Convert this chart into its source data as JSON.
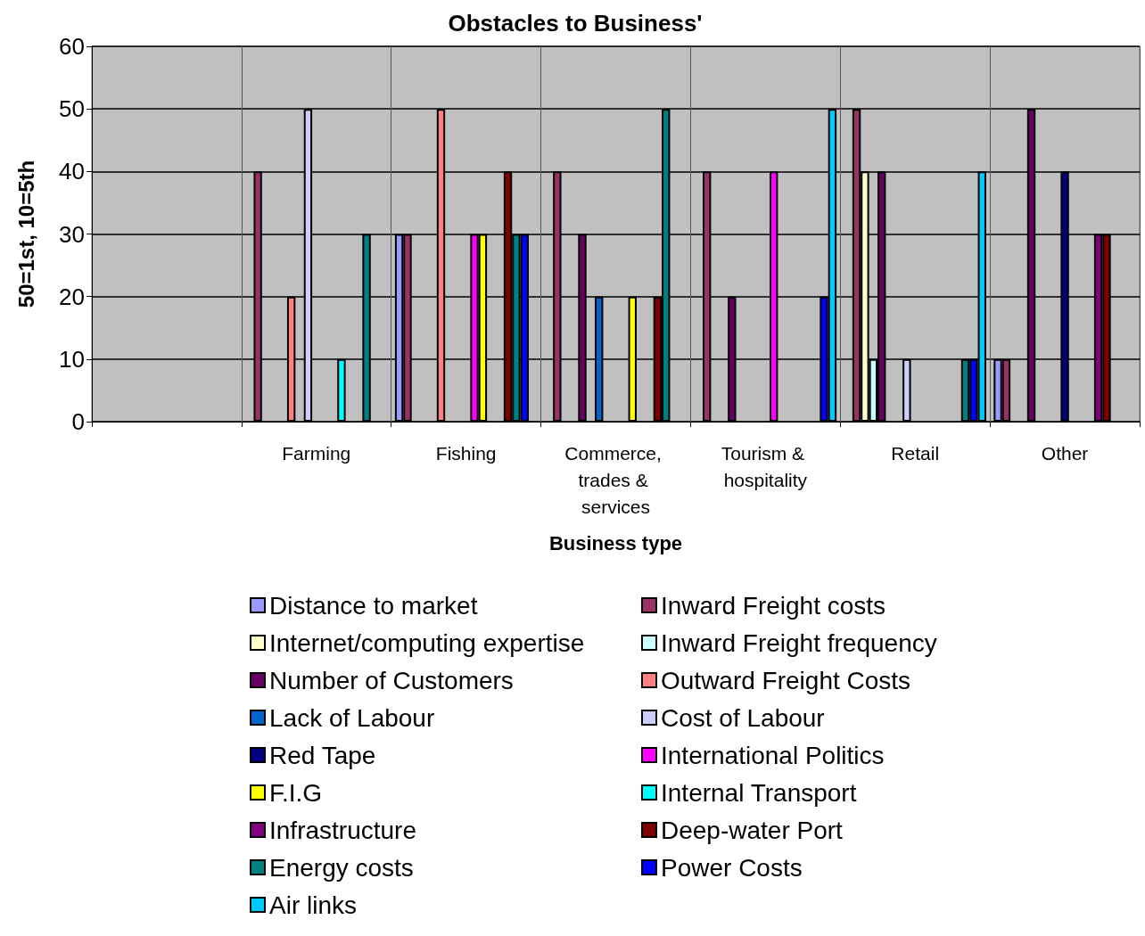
{
  "chart_data": {
    "type": "bar",
    "title": "Obstacles to Business'",
    "xlabel": "Business type",
    "ylabel": "50=1st, 10=5th",
    "categories": [
      null,
      "Farming",
      "Fishing",
      "Commerce, trades & services",
      "Tourism & hospitality",
      "Retail",
      "Other"
    ],
    "ylim": [
      0,
      60
    ],
    "yticks": [
      0,
      10,
      20,
      30,
      40,
      50,
      60
    ],
    "grid": true,
    "legend": "bottom",
    "series": [
      {
        "name": "Distance to market",
        "color": "#9999ff",
        "values": [
          null,
          null,
          30,
          null,
          null,
          null,
          10
        ]
      },
      {
        "name": "Inward Freight costs",
        "color": "#993366",
        "values": [
          null,
          40,
          30,
          40,
          40,
          50,
          10
        ]
      },
      {
        "name": "Internet/computing expertise",
        "color": "#ffffcc",
        "values": [
          null,
          null,
          null,
          null,
          null,
          40,
          null
        ]
      },
      {
        "name": "Inward Freight frequency",
        "color": "#ccffff",
        "values": [
          null,
          null,
          null,
          null,
          null,
          10,
          null
        ]
      },
      {
        "name": "Number of Customers",
        "color": "#660066",
        "values": [
          null,
          null,
          null,
          30,
          20,
          40,
          50
        ]
      },
      {
        "name": "Outward Freight Costs",
        "color": "#ff8080",
        "values": [
          null,
          20,
          50,
          null,
          null,
          null,
          null
        ]
      },
      {
        "name": "Lack of Labour",
        "color": "#0066cc",
        "values": [
          null,
          null,
          null,
          20,
          null,
          null,
          null
        ]
      },
      {
        "name": "Cost of Labour",
        "color": "#ccccff",
        "values": [
          null,
          50,
          null,
          null,
          null,
          10,
          null
        ]
      },
      {
        "name": "Red Tape",
        "color": "#000080",
        "values": [
          null,
          null,
          null,
          null,
          null,
          null,
          40
        ]
      },
      {
        "name": "International Politics",
        "color": "#ff00ff",
        "values": [
          null,
          null,
          30,
          null,
          40,
          null,
          null
        ]
      },
      {
        "name": "F.I.G",
        "color": "#ffff00",
        "values": [
          null,
          null,
          30,
          20,
          null,
          null,
          null
        ]
      },
      {
        "name": "Internal Transport",
        "color": "#00ffff",
        "values": [
          null,
          10,
          null,
          null,
          null,
          null,
          null
        ]
      },
      {
        "name": "Infrastructure",
        "color": "#800080",
        "values": [
          null,
          null,
          null,
          null,
          null,
          null,
          30
        ]
      },
      {
        "name": "Deep-water Port",
        "color": "#800000",
        "values": [
          null,
          null,
          40,
          20,
          null,
          null,
          30
        ]
      },
      {
        "name": "Energy costs",
        "color": "#008080",
        "values": [
          null,
          30,
          30,
          50,
          null,
          10,
          null
        ]
      },
      {
        "name": "Power Costs",
        "color": "#0000ff",
        "values": [
          null,
          null,
          30,
          null,
          20,
          10,
          null
        ]
      },
      {
        "name": "Air links",
        "color": "#00ccff",
        "values": [
          null,
          null,
          null,
          null,
          50,
          40,
          null
        ]
      }
    ]
  }
}
